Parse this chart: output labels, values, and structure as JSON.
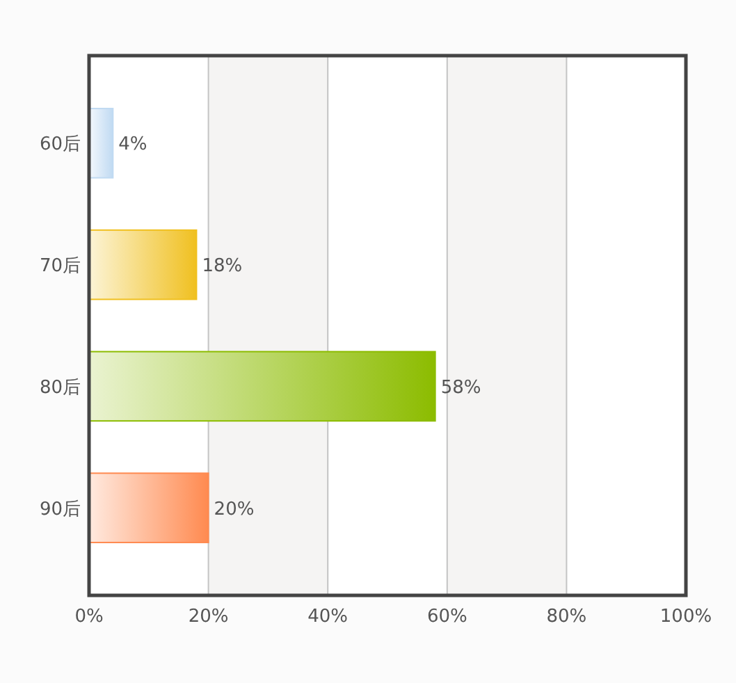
{
  "chart_data": {
    "type": "bar",
    "orientation": "horizontal",
    "categories": [
      "60后",
      "70后",
      "80后",
      "90后"
    ],
    "values": [
      4,
      18,
      58,
      20
    ],
    "colors": [
      "#c0daf2",
      "#f0c020",
      "#8cbc00",
      "#ff8a50"
    ],
    "value_labels": [
      "4%",
      "18%",
      "58%",
      "20%"
    ],
    "xlim": [
      0,
      100
    ],
    "xticks": [
      {
        "value": 0,
        "label": "0%"
      },
      {
        "value": 20,
        "label": "20%"
      },
      {
        "value": 40,
        "label": "40%"
      },
      {
        "value": 60,
        "label": "60%"
      },
      {
        "value": 80,
        "label": "80%"
      },
      {
        "value": 100,
        "label": "100%"
      }
    ],
    "grid": "x",
    "bands": [
      {
        "axis": "x",
        "from": 20,
        "to": 40,
        "color": "#f5f4f3"
      },
      {
        "axis": "x",
        "from": 60,
        "to": 80,
        "color": "#f5f4f3"
      }
    ]
  }
}
